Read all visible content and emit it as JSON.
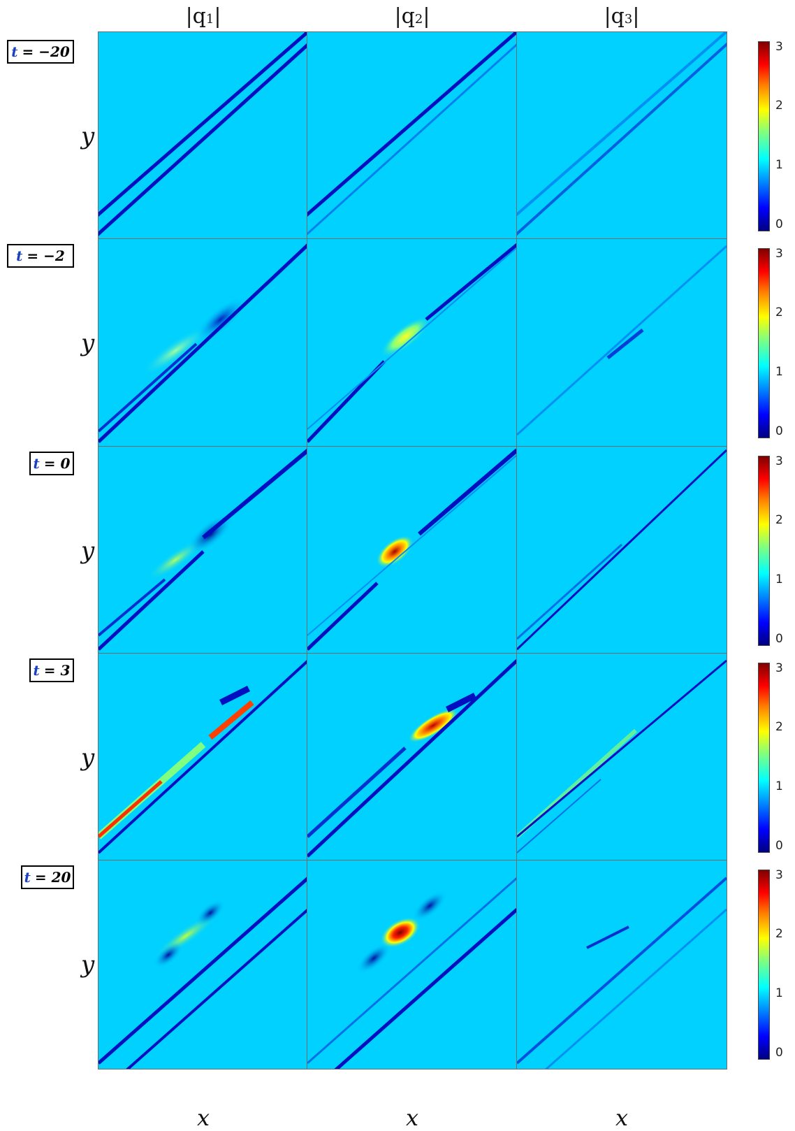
{
  "column_titles": [
    {
      "pre": "|q",
      "sub": "1",
      "post": "|"
    },
    {
      "pre": "|q",
      "sub": "2",
      "post": "|"
    },
    {
      "pre": "|q",
      "sub": "3",
      "post": "|"
    }
  ],
  "rows": [
    {
      "t_var": "t",
      "t_eq": "= −20",
      "ylabel": "y"
    },
    {
      "t_var": "t",
      "t_eq": "= −2",
      "ylabel": "y"
    },
    {
      "t_var": "t",
      "t_eq": "= 0",
      "ylabel": "y"
    },
    {
      "t_var": "t",
      "t_eq": "= 3",
      "ylabel": "y"
    },
    {
      "t_var": "t",
      "t_eq": "= 20",
      "ylabel": "y"
    }
  ],
  "xlabel": "x",
  "colorbar": {
    "ticks": [
      "0",
      "1",
      "2",
      "3"
    ],
    "colormap": "jet",
    "range": [
      0,
      3.1
    ]
  },
  "chart_data": {
    "type": "heatmap",
    "background_value": 1.15,
    "colormap": "jet",
    "value_range": [
      0,
      3.1
    ],
    "panels_note": "rows are times t = −20, −2, 0, 3, 20; columns are |q1|, |q2|, |q3|"
  }
}
